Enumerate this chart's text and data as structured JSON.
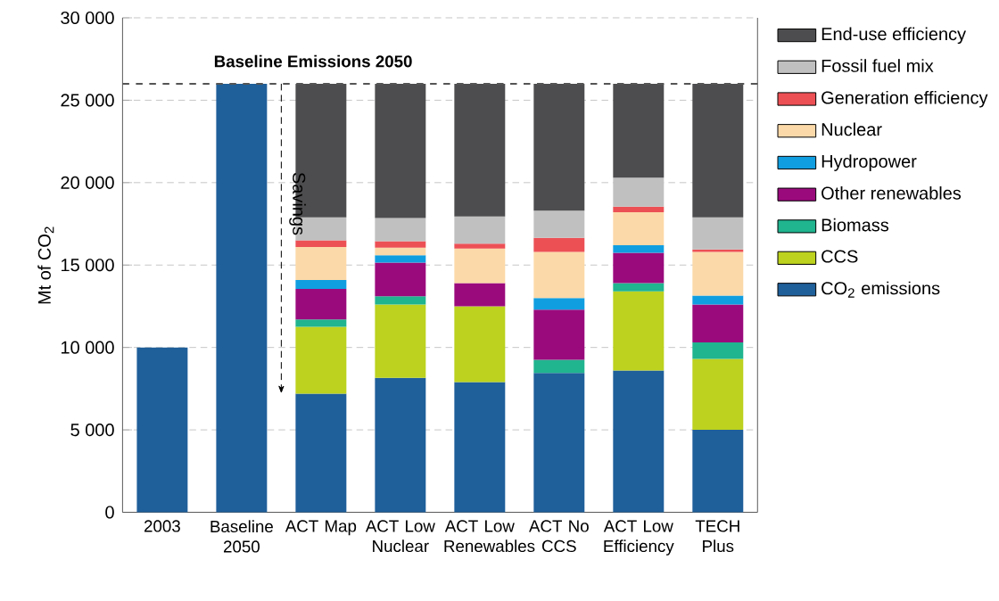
{
  "chart_data": {
    "type": "bar",
    "stacked": true,
    "ylabel": "Mt of CO$_{2}$",
    "categories": [
      "2003",
      "Baseline 2050",
      "ACT Map",
      "ACT Low Nuclear",
      "ACT Low Renewables",
      "ACT No CCS",
      "ACT Low Efficiency",
      "TECH Plus"
    ],
    "series": [
      {
        "name": "CO$_{2}$ emissions",
        "color": "#1f5f9a",
        "values": [
          10000,
          26000,
          7200,
          8150,
          7900,
          8450,
          8600,
          5000
        ]
      },
      {
        "name": "CCS",
        "color": "#bcd21e",
        "values": [
          null,
          null,
          4050,
          4450,
          4600,
          null,
          4800,
          4300
        ]
      },
      {
        "name": "Biomass",
        "color": "#20b48f",
        "values": [
          null,
          null,
          450,
          500,
          null,
          800,
          500,
          1000
        ]
      },
      {
        "name": "Other renewables",
        "color": "#9b0a7d",
        "values": [
          null,
          null,
          1850,
          2050,
          1400,
          3050,
          1850,
          2300
        ]
      },
      {
        "name": "Hydropower",
        "color": "#119ee0",
        "values": [
          null,
          null,
          550,
          450,
          null,
          700,
          450,
          550
        ]
      },
      {
        "name": "Nuclear",
        "color": "#fcd9a8",
        "values": [
          null,
          null,
          2000,
          450,
          2100,
          2800,
          2000,
          2650
        ]
      },
      {
        "name": "Generation efficiency",
        "color": "#ec5055",
        "values": [
          null,
          null,
          400,
          400,
          300,
          850,
          350,
          150
        ]
      },
      {
        "name": "Fossil fuel mix",
        "color": "#c0c0c0",
        "values": [
          null,
          null,
          1400,
          1400,
          1650,
          1650,
          1750,
          1950
        ]
      },
      {
        "name": "End-use efficiency",
        "color": "#4d4d4f",
        "values": [
          null,
          null,
          8100,
          8150,
          8050,
          7700,
          5700,
          8100
        ]
      }
    ],
    "ylim": [
      0,
      30000
    ],
    "yticks": [
      {
        "value": 0,
        "label": "0"
      },
      {
        "value": 5000,
        "label": "5 000"
      },
      {
        "value": 10000,
        "label": "10 000"
      },
      {
        "value": 15000,
        "label": "15 000"
      },
      {
        "value": 20000,
        "label": "20 000"
      },
      {
        "value": 25000,
        "label": "25 000"
      },
      {
        "value": 30000,
        "label": "30 000"
      }
    ],
    "grid": "y",
    "legend": "right",
    "ref_lines": [
      {
        "axis": "y",
        "value": 26000,
        "label": "Baseline Emissions 2050",
        "color": "#555555",
        "line_style": "dashed"
      }
    ],
    "annotations": [
      "Savings"
    ]
  }
}
